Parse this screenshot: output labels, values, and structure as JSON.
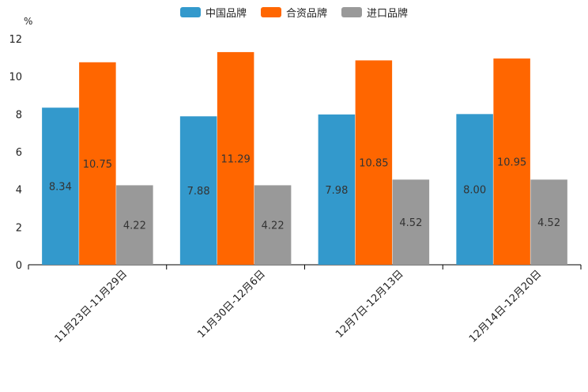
{
  "chart_data": {
    "type": "bar",
    "unit": "%",
    "categories": [
      "11月23日-11月29日",
      "11月30日-12月6日",
      "12月7日-12月13日",
      "12月14日-12月20日"
    ],
    "series": [
      {
        "name": "中国品牌",
        "color": "#3399cc",
        "values": [
          8.34,
          7.88,
          7.98,
          8.0
        ],
        "labels": [
          "8.34",
          "7.88",
          "7.98",
          "8.00"
        ]
      },
      {
        "name": "合资品牌",
        "color": "#ff6600",
        "values": [
          10.75,
          11.29,
          10.85,
          10.95
        ],
        "labels": [
          "10.75",
          "11.29",
          "10.85",
          "10.95"
        ]
      },
      {
        "name": "进口品牌",
        "color": "#999999",
        "values": [
          4.22,
          4.22,
          4.52,
          4.52
        ],
        "labels": [
          "4.22",
          "4.22",
          "4.52",
          "4.52"
        ]
      }
    ],
    "ylim": [
      0,
      12
    ],
    "yticks": [
      "0",
      "2",
      "4",
      "6",
      "8",
      "10",
      "12"
    ],
    "legend_position": "top-center"
  }
}
